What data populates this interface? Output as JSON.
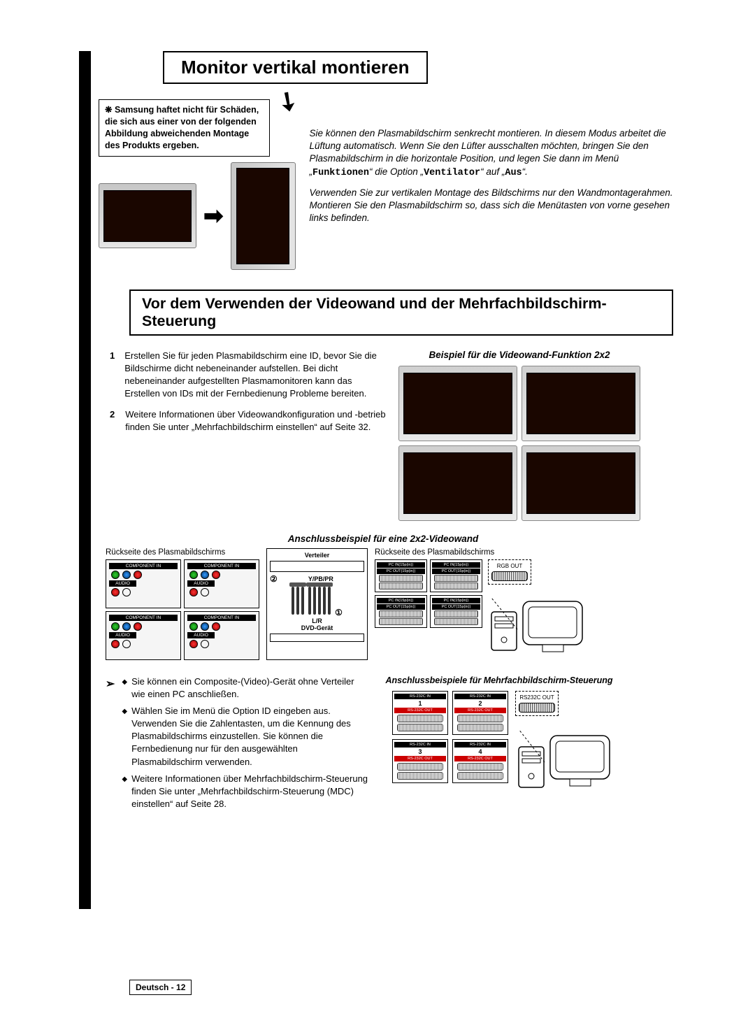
{
  "title1": "Monitor vertikal montieren",
  "warning": "❋ Samsung haftet nicht für Schäden, die sich aus einer von der folgenden Abbildung abweichenden Montage des Produkts ergeben.",
  "instr_p1_a": "Sie können den Plasmabildschirm senkrecht montieren. In diesem Modus arbeitet die Lüftung automatisch. Wenn Sie den Lüfter ausschalten möchten, bringen Sie den Plasmabildschirm in die horizontale Position, und legen Sie dann im Menü „",
  "instr_p1_b": "Funktionen",
  "instr_p1_c": "“ die Option „",
  "instr_p1_d": "Ventilator",
  "instr_p1_e": "“ auf „",
  "instr_p1_f": "Aus",
  "instr_p1_g": "“.",
  "instr_p2": "Verwenden Sie zur vertikalen Montage des Bildschirms nur den Wandmontagerahmen. Montieren Sie den Plasmabildschirm so, dass sich die Menütasten von vorne gesehen links befinden.",
  "title2": "Vor dem Verwenden der Videowand und der Mehrfachbildschirm-Steuerung",
  "caption_vw": "Beispiel für die Videowand-Funktion 2x2",
  "steps": [
    {
      "n": "1",
      "t": "Erstellen Sie für jeden Plasmabildschirm eine ID, bevor Sie die Bildschirme dicht nebeneinander aufstellen. Bei dicht nebeneinander aufgestellten Plasmamonitoren kann das Erstellen von IDs mit der Fernbedienung Probleme bereiten."
    },
    {
      "n": "2",
      "t": "Weitere Informationen über Videowandkonfiguration und -betrieb finden Sie unter „Mehrfachbildschirm einstellen“ auf Seite  32."
    }
  ],
  "caption_conn": "Anschlussbeispiel für eine 2x2-Videowand",
  "back_label": "Rückseite des Plasmabildschirms",
  "verteiler": "Verteiler",
  "ypbpr": "Y/PB/PR",
  "lr": "L/R",
  "dvd": "DVD-Gerät",
  "pcin": "PC IN(15p(in))",
  "pcout": "PC OUT(15p(in))",
  "rgbout": "RGB OUT",
  "bullets": [
    "Sie können ein Composite-(Video)-Gerät ohne Verteiler wie einen PC anschließen.",
    "Wählen Sie im Menü die Option ID eingeben aus. Verwenden Sie die Zahlentasten, um die Kennung des Plasmabildschirms einzustellen. Sie können die Fernbedienung nur für den ausgewählten Plasmabildschirm verwenden.",
    "Weitere Informationen über Mehrfachbildschirm-Steuerung finden Sie unter „Mehrfachbildschirm-Steuerung (MDC) einstellen“ auf Seite 28."
  ],
  "caption_mdc": "Anschlussbeispiele für Mehrfachbildschirm-Steuerung",
  "rsin": "RS-232C IN",
  "rsout": "RS-232C OUT",
  "rs232cout": "RS232C OUT",
  "rs_ids": [
    "1",
    "2",
    "3",
    "4"
  ],
  "circ1": "①",
  "circ2": "②",
  "footer_lang": "Deutsch - ",
  "footer_page": "12",
  "component_in": "COMPONENT IN",
  "audio": "AUDIO"
}
